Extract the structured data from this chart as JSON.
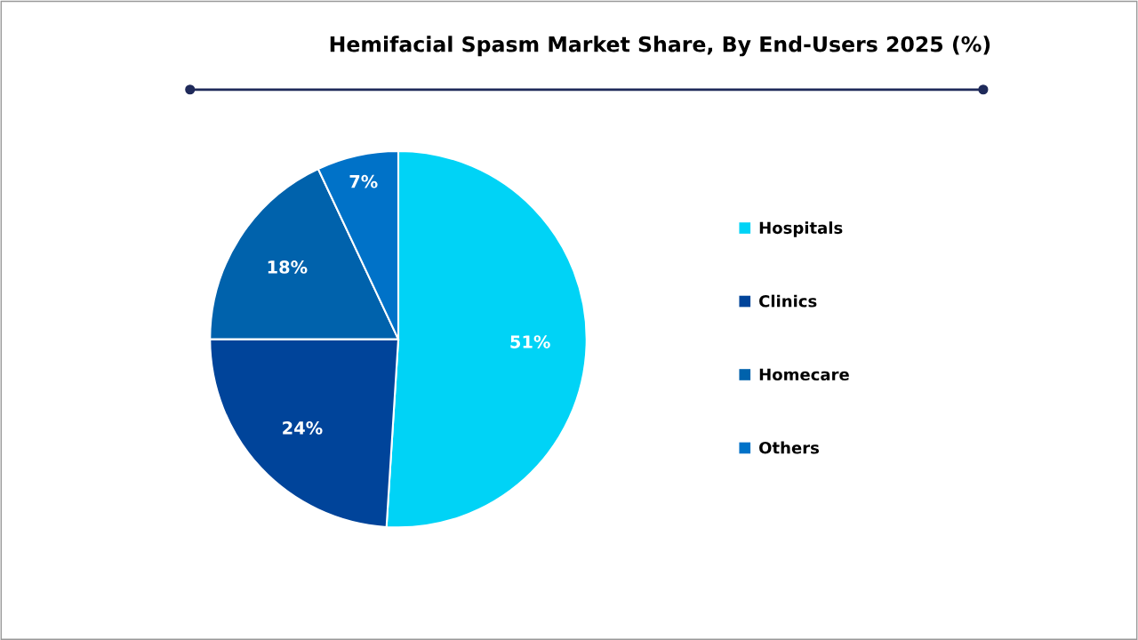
{
  "chart_data": {
    "type": "pie",
    "title": "Hemifacial Spasm Market Share, By End-Users 2025 (%)",
    "categories": [
      "Hospitals",
      "Clinics",
      "Homecare",
      "Others"
    ],
    "values": [
      51,
      24,
      18,
      7
    ],
    "colors": [
      "#00d3f6",
      "#00449a",
      "#0062ac",
      "#0072c8"
    ],
    "value_labels": [
      "51%",
      "24%",
      "18%",
      "7%"
    ],
    "legend": "right"
  }
}
